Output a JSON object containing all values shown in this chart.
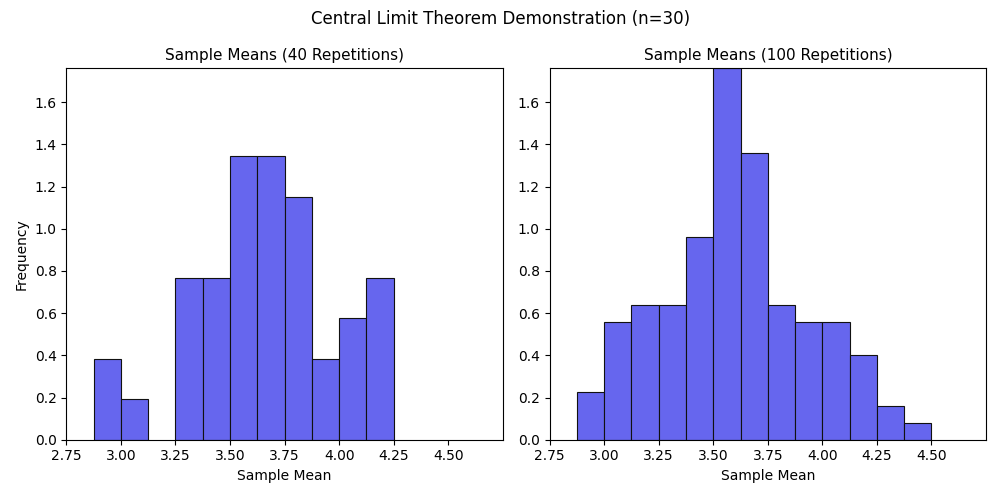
{
  "title": "Central Limit Theorem Demonstration (n=30)",
  "subplot1_title": "Sample Means (40 Repetitions)",
  "subplot2_title": "Sample Means (100 Repetitions)",
  "xlabel": "Sample Mean",
  "ylabel": "Frequency",
  "bar_color": "#6666EE",
  "bar_edgecolor": "#111111",
  "bin_width": 0.125,
  "xlim": [
    2.75,
    4.75
  ],
  "ylim1": [
    0,
    1.76
  ],
  "ylim2": [
    0,
    1.76
  ],
  "xticks": [
    2.75,
    3.0,
    3.25,
    3.5,
    3.75,
    4.0,
    4.25,
    4.5
  ],
  "figsize": [
    10.01,
    4.98
  ],
  "dpi": 100,
  "title_fontsize": 12,
  "subplot_title_fontsize": 11,
  "label_fontsize": 10,
  "bins1_left": [
    2.875,
    3.0,
    3.25,
    3.375,
    3.5,
    3.625,
    3.75,
    3.875,
    4.0,
    4.125
  ],
  "heights1": [
    0.384,
    0.192,
    0.768,
    0.768,
    1.344,
    1.344,
    1.152,
    0.384,
    0.576,
    0.768
  ],
  "bins2_left": [
    2.875,
    3.0,
    3.125,
    3.25,
    3.375,
    3.5,
    3.625,
    3.75,
    3.875,
    4.0,
    4.125,
    4.25,
    4.375
  ],
  "heights2": [
    0.224,
    0.56,
    0.64,
    0.64,
    0.96,
    1.76,
    1.36,
    0.64,
    0.56,
    0.56,
    0.4,
    0.16,
    0.08
  ]
}
